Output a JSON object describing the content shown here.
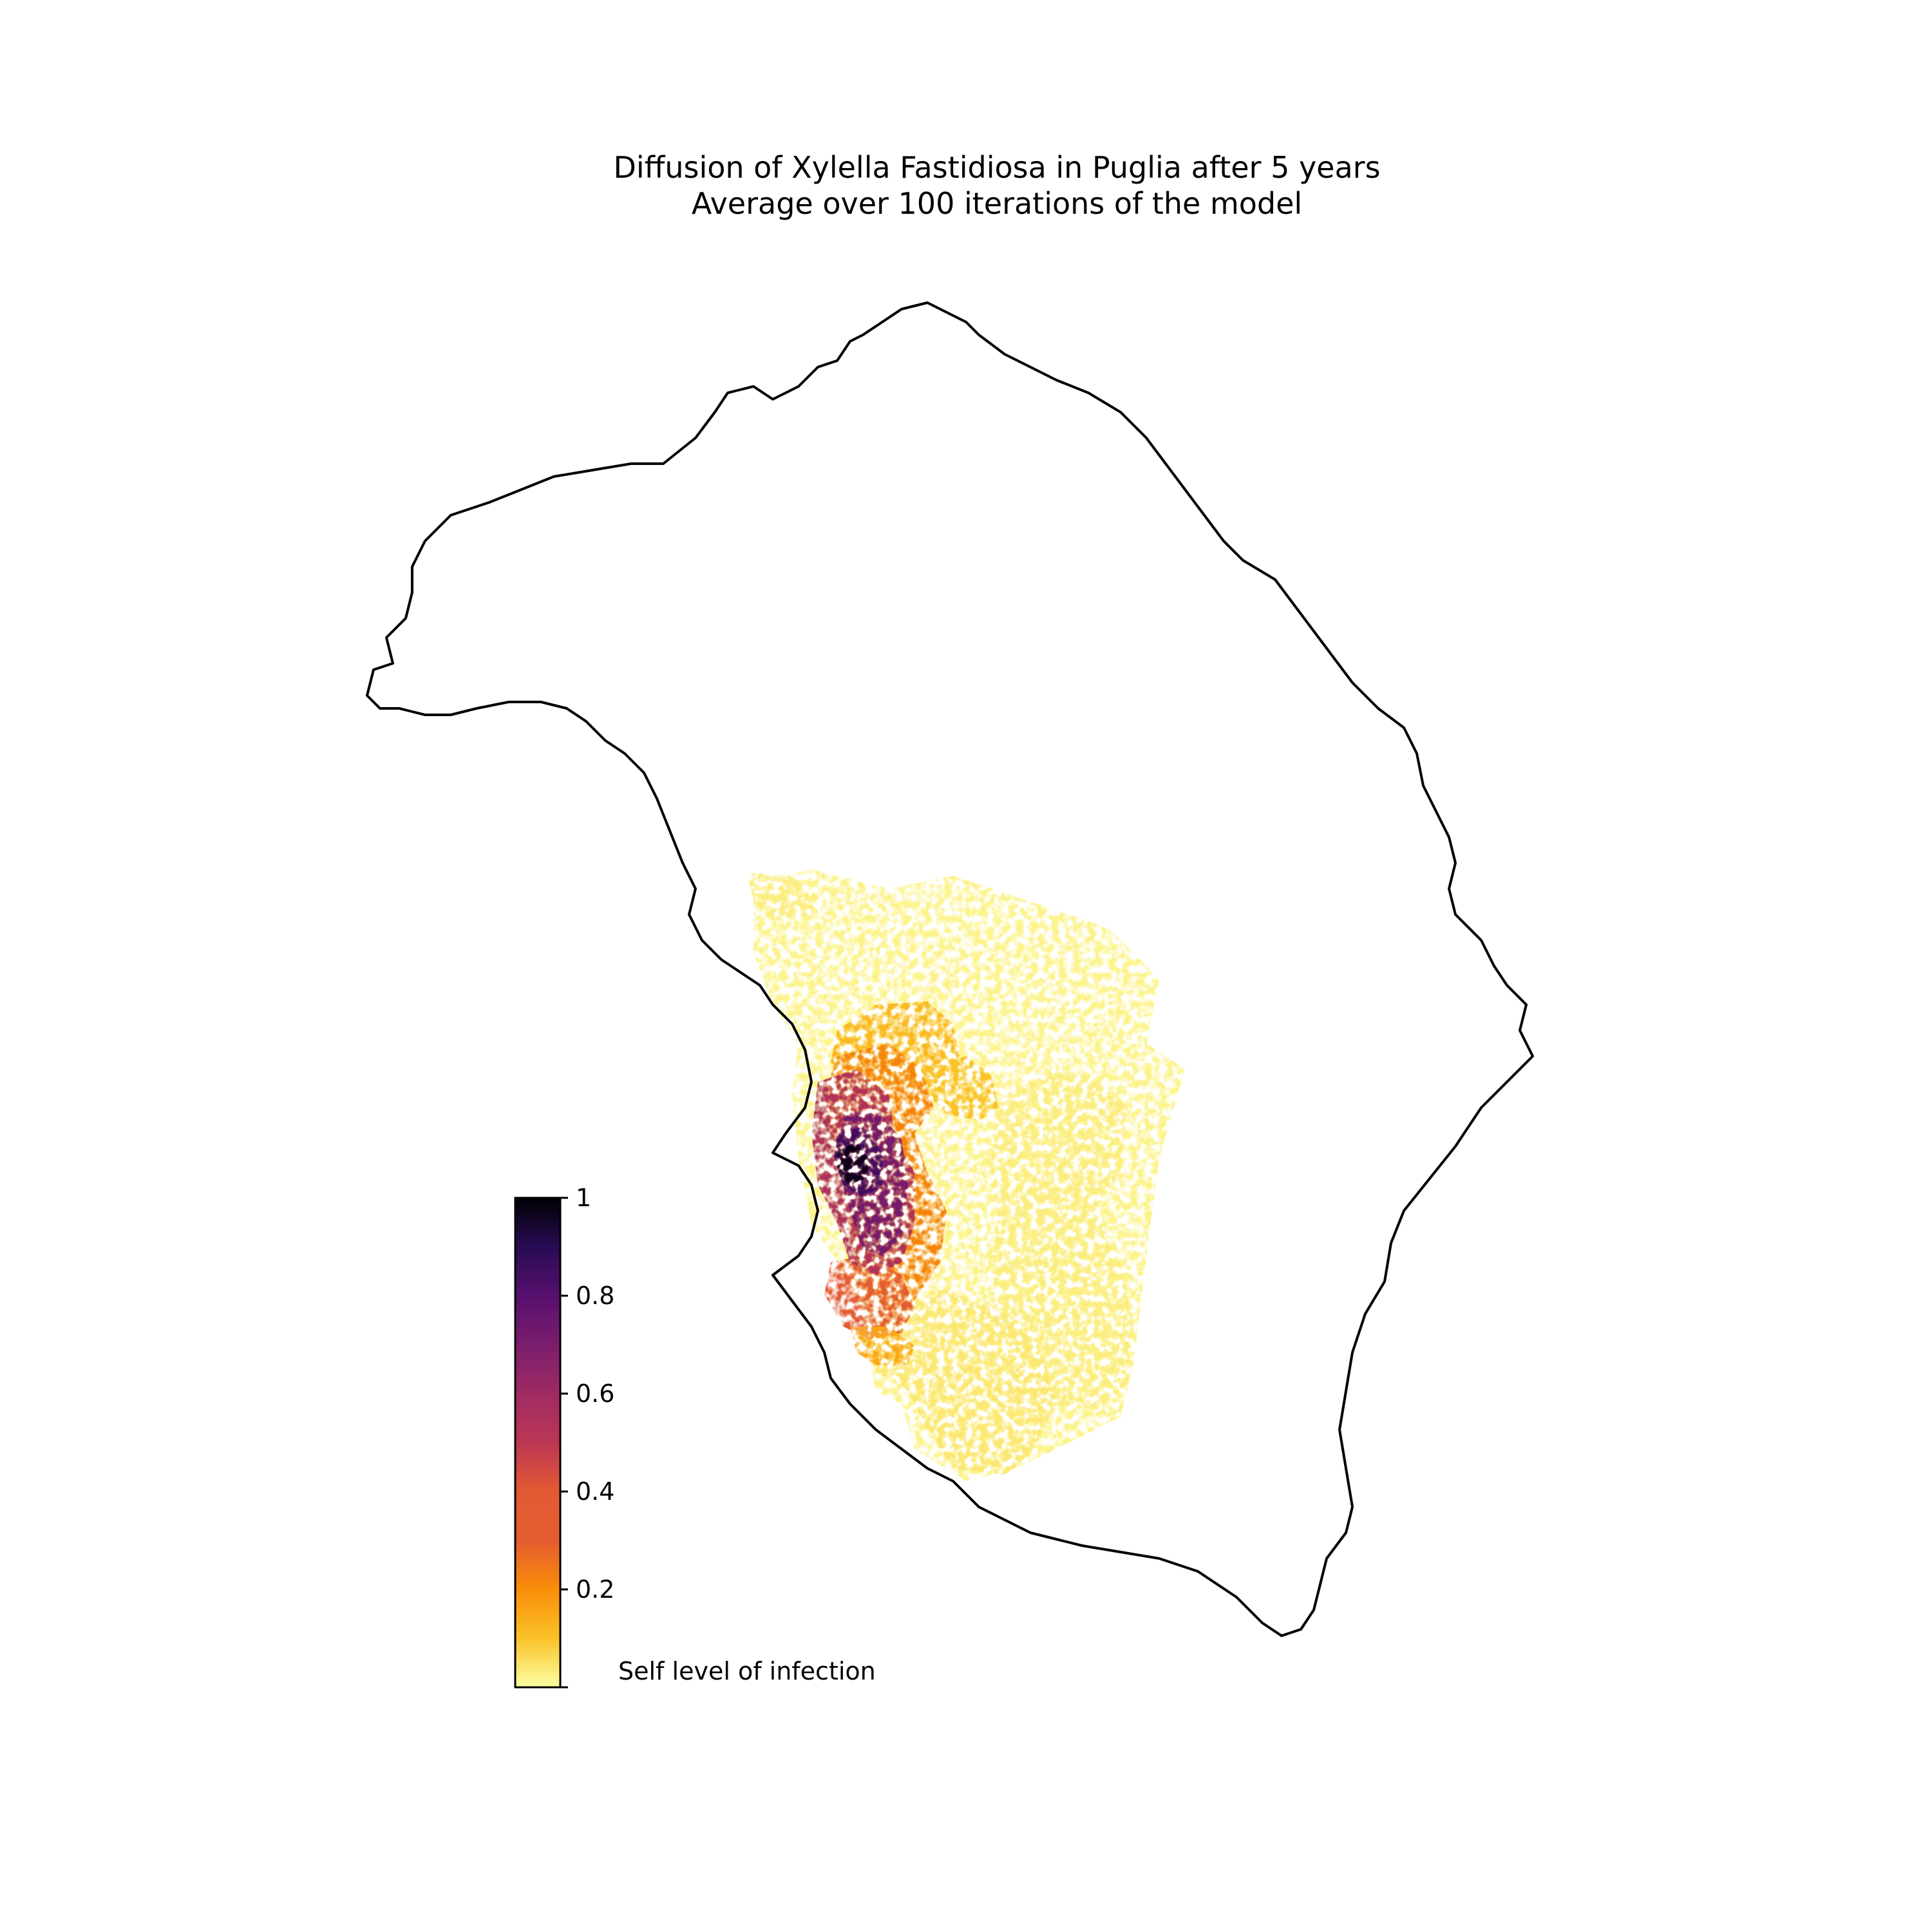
{
  "figure": {
    "title_line1": "Diffusion of Xylella Fastidiosa in Puglia after 5 years",
    "title_line2": "Average over 100 iterations of the model"
  },
  "colorbar": {
    "caption": "Self level of infection",
    "colormap": "inferno",
    "range": [
      0,
      1
    ],
    "ticks": [
      {
        "value": 1.0,
        "label": "1"
      },
      {
        "value": 0.8,
        "label": "0.8"
      },
      {
        "value": 0.6,
        "label": "0.6"
      },
      {
        "value": 0.4,
        "label": "0.4"
      },
      {
        "value": 0.2,
        "label": "0.2"
      }
    ],
    "stops": [
      {
        "value": 0.0,
        "color": "#fcffa4"
      },
      {
        "value": 0.1,
        "color": "#fac228"
      },
      {
        "value": 0.2,
        "color": "#f98e09"
      },
      {
        "value": 0.3,
        "color": "#e55c30"
      },
      {
        "value": 0.4,
        "color": "#e35933"
      },
      {
        "value": 0.5,
        "color": "#bc3754"
      },
      {
        "value": 0.6,
        "color": "#9f2a63"
      },
      {
        "value": 0.7,
        "color": "#7a1d6d"
      },
      {
        "value": 0.8,
        "color": "#57106e"
      },
      {
        "value": 0.9,
        "color": "#280b54"
      },
      {
        "value": 1.0,
        "color": "#000004"
      }
    ]
  },
  "map": {
    "region": "Puglia (Salento peninsula)",
    "outline_color": "#000000",
    "infection_zones": [
      {
        "name": "outer-yellow-haze",
        "level": 0.02
      },
      {
        "name": "east-yellow-field",
        "level": 0.03
      },
      {
        "name": "south-yellow-field",
        "level": 0.04
      },
      {
        "name": "northwest-yellow-patch",
        "level": 0.03
      },
      {
        "name": "north-gold-area",
        "level": 0.12
      },
      {
        "name": "central-gold-area",
        "level": 0.1
      },
      {
        "name": "orange-band",
        "level": 0.22
      },
      {
        "name": "southwest-orange-red",
        "level": 0.35
      },
      {
        "name": "southwest-gold-strip",
        "level": 0.15
      },
      {
        "name": "west-magenta-area",
        "level": 0.55
      },
      {
        "name": "purple-core",
        "level": 0.72
      },
      {
        "name": "dark-purple-core",
        "level": 0.85
      },
      {
        "name": "black-core",
        "level": 0.98
      }
    ]
  }
}
